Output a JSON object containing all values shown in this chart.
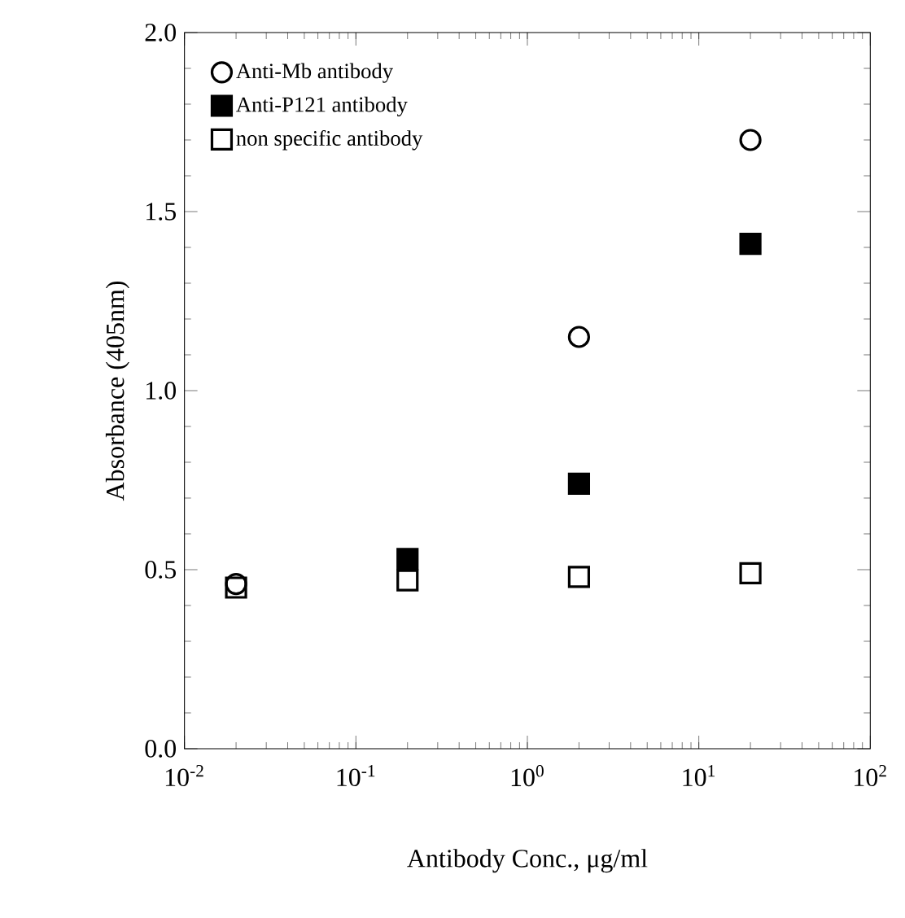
{
  "chart_data": {
    "type": "scatter",
    "xlabel": "Antibody Conc., μg/ml",
    "ylabel": "Absorbance (405nm)",
    "x": [
      0.02,
      0.2,
      2,
      20
    ],
    "series": [
      {
        "name": "Anti-Mb antibody",
        "color": "#000000",
        "marker": "circle",
        "values": [
          0.46,
          null,
          1.15,
          1.7
        ]
      },
      {
        "name": "Anti-P121 antibody",
        "color": "#000000",
        "marker": "square*",
        "values": [
          null,
          0.53,
          0.74,
          1.41
        ]
      },
      {
        "name": "non specific antibody",
        "color": "#000000",
        "marker": "square",
        "values": [
          0.45,
          0.47,
          0.48,
          0.49
        ]
      }
    ],
    "log": "x",
    "xlim": [
      0.01,
      100
    ],
    "ylim": [
      0,
      2
    ],
    "xticks": [
      {
        "value": 0.01,
        "label": "10$^{-2}$"
      },
      {
        "value": 0.1,
        "label": "10$^{-1}$"
      },
      {
        "value": 1,
        "label": "10$^{0}$"
      },
      {
        "value": 10,
        "label": "10$^{1}$"
      },
      {
        "value": 100,
        "label": "10$^{2}$"
      }
    ],
    "yticks": [
      {
        "value": 0,
        "label": "0.0"
      },
      {
        "value": 0.5,
        "label": "0.5"
      },
      {
        "value": 1,
        "label": "1.0"
      },
      {
        "value": 1.5,
        "label": "1.5"
      },
      {
        "value": 2,
        "label": "2.0"
      }
    ],
    "legend": "top left"
  }
}
